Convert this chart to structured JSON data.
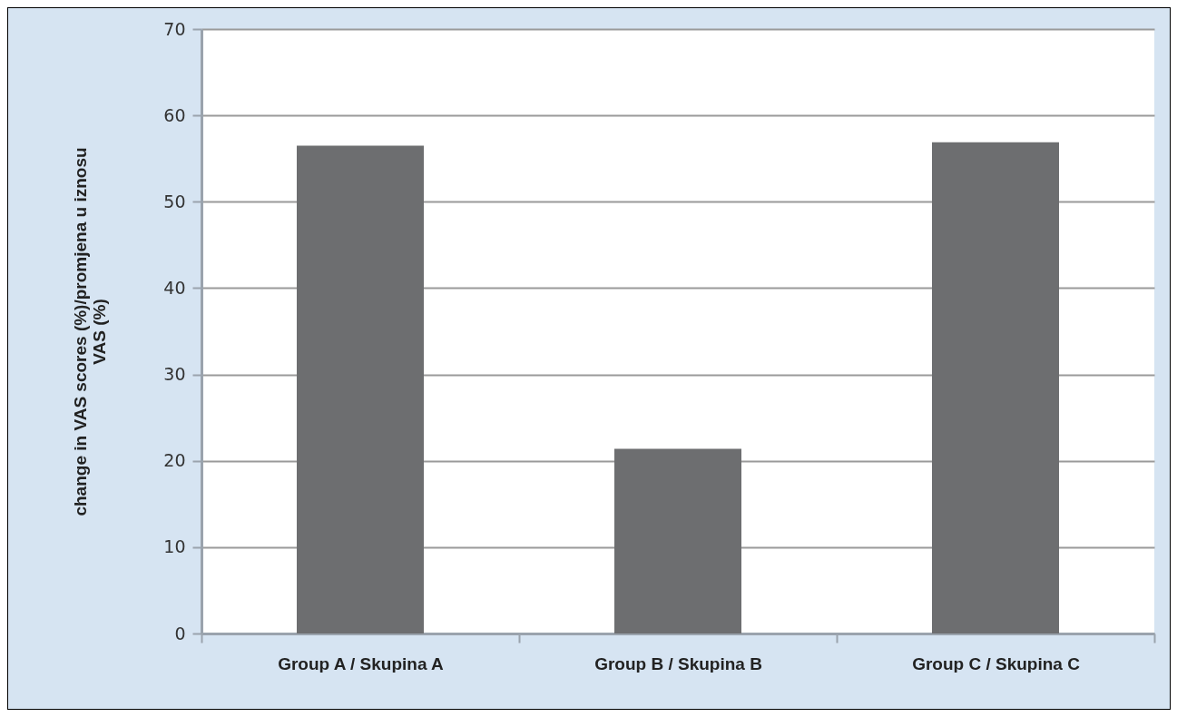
{
  "chart_data": {
    "type": "bar",
    "ylabel": "change in VAS scores (%)/promjena u iznosu\nVAS (%)",
    "categories": [
      "Group A / Skupina A",
      "Group B / Skupina B",
      "Group C / Skupina C"
    ],
    "values": [
      56.5,
      21.4,
      56.9
    ],
    "color": "#6d6e70",
    "ylim": [
      0,
      70
    ],
    "yticks": [
      0,
      10,
      20,
      30,
      40,
      50,
      60,
      70
    ],
    "grid": "y"
  }
}
